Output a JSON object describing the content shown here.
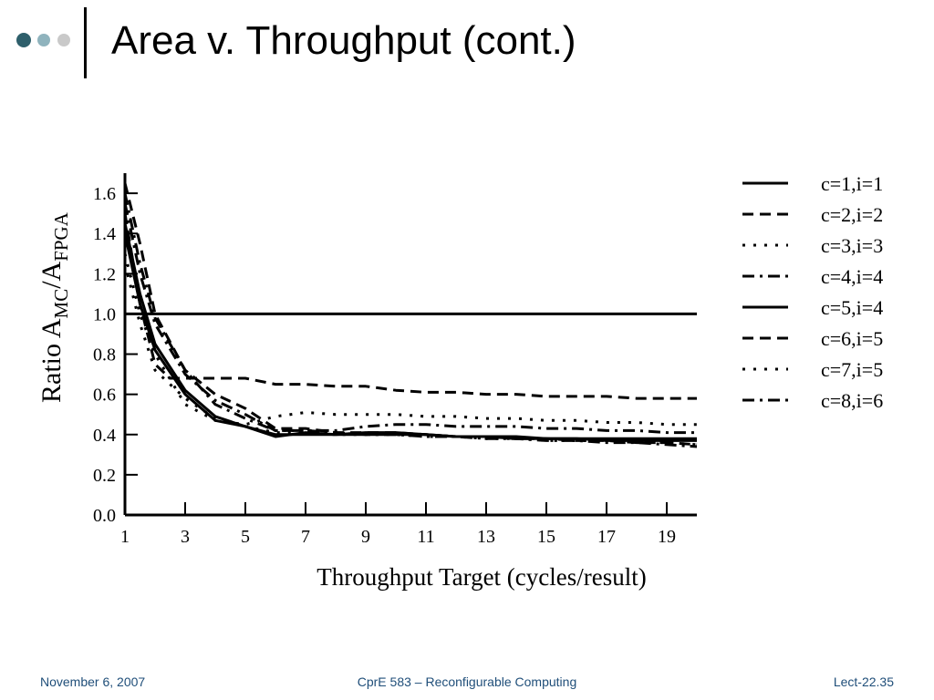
{
  "slide": {
    "title": "Area v. Throughput (cont.)",
    "footer_left": "November 6, 2007",
    "footer_center": "CprE 583 – Reconfigurable Computing",
    "footer_right": "Lect-22.35"
  },
  "theme": {
    "dot_colors": [
      "#2e5f6b",
      "#8fb3bd",
      "#c9c9c9"
    ],
    "footer_color": "#1f4e79"
  },
  "chart_data": {
    "type": "line",
    "title": "",
    "xlabel": "Throughput Target (cycles/result)",
    "ylabel_parts": [
      "Ratio A",
      "MC",
      "/A",
      "FPGA"
    ],
    "xlim": [
      1,
      20
    ],
    "ylim": [
      0,
      1.7
    ],
    "x_ticks": [
      "1",
      "3",
      "5",
      "7",
      "9",
      "11",
      "13",
      "15",
      "17",
      "19"
    ],
    "y_ticks": [
      "0.0",
      "0.2",
      "0.4",
      "0.6",
      "0.8",
      "1.0",
      "1.2",
      "1.4",
      "1.6"
    ],
    "reference_line": 1.0,
    "grid": false,
    "legend_position": "right",
    "series": [
      {
        "name": "c=1,i=1",
        "style": "solid",
        "x": [
          1,
          1.5,
          2,
          3,
          4,
          5,
          6,
          7,
          8,
          9,
          10,
          11,
          12,
          13,
          14,
          15,
          16,
          17,
          18,
          19,
          20
        ],
        "y": [
          1.45,
          1.1,
          0.85,
          0.62,
          0.49,
          0.44,
          0.39,
          0.41,
          0.4,
          0.41,
          0.41,
          0.4,
          0.39,
          0.39,
          0.39,
          0.38,
          0.38,
          0.38,
          0.38,
          0.38,
          0.38
        ]
      },
      {
        "name": "c=2,i=2",
        "style": "dashed",
        "x": [
          1,
          1.5,
          2,
          2.5,
          3,
          4,
          5,
          6,
          7,
          8,
          9,
          10,
          11,
          12,
          13,
          14,
          15,
          16,
          17,
          18,
          19,
          20
        ],
        "y": [
          1.5,
          1.05,
          0.75,
          0.68,
          0.68,
          0.68,
          0.68,
          0.65,
          0.65,
          0.64,
          0.64,
          0.62,
          0.61,
          0.61,
          0.6,
          0.6,
          0.59,
          0.59,
          0.59,
          0.58,
          0.58,
          0.58
        ]
      },
      {
        "name": "c=3,i=3",
        "style": "dotted",
        "x": [
          1,
          1.5,
          2,
          3,
          4,
          5,
          6,
          7,
          8,
          9,
          10,
          11,
          12,
          13,
          14,
          15,
          16,
          17,
          18,
          19,
          20
        ],
        "y": [
          1.3,
          1.0,
          0.8,
          0.55,
          0.47,
          0.45,
          0.49,
          0.51,
          0.5,
          0.5,
          0.5,
          0.49,
          0.49,
          0.48,
          0.48,
          0.47,
          0.47,
          0.46,
          0.46,
          0.45,
          0.45
        ]
      },
      {
        "name": "c=4,i=4",
        "style": "dashdot",
        "x": [
          1,
          1.5,
          2,
          3,
          4,
          5,
          6,
          7,
          8,
          9,
          10,
          11,
          12,
          13,
          14,
          15,
          16,
          17,
          18,
          19,
          20
        ],
        "y": [
          1.55,
          1.2,
          0.95,
          0.7,
          0.57,
          0.5,
          0.42,
          0.42,
          0.42,
          0.44,
          0.45,
          0.45,
          0.44,
          0.44,
          0.44,
          0.43,
          0.43,
          0.42,
          0.42,
          0.41,
          0.41
        ]
      },
      {
        "name": "c=5,i=4",
        "style": "solid",
        "x": [
          1,
          1.5,
          2,
          3,
          4,
          5,
          6,
          7,
          8,
          9,
          10,
          11,
          12,
          13,
          14,
          15,
          16,
          17,
          18,
          19,
          20
        ],
        "y": [
          1.4,
          1.05,
          0.82,
          0.6,
          0.47,
          0.44,
          0.4,
          0.4,
          0.4,
          0.4,
          0.4,
          0.4,
          0.39,
          0.39,
          0.38,
          0.38,
          0.38,
          0.37,
          0.37,
          0.37,
          0.37
        ]
      },
      {
        "name": "c=6,i=5",
        "style": "dashed",
        "x": [
          1,
          1.5,
          2,
          3,
          4,
          5,
          6,
          7,
          8,
          9,
          10,
          11,
          12,
          13,
          14,
          15,
          16,
          17,
          18,
          19,
          20
        ],
        "y": [
          1.65,
          1.35,
          1.0,
          0.72,
          0.6,
          0.53,
          0.43,
          0.43,
          0.41,
          0.41,
          0.41,
          0.4,
          0.39,
          0.39,
          0.38,
          0.38,
          0.37,
          0.37,
          0.36,
          0.36,
          0.35
        ]
      },
      {
        "name": "c=7,i=5",
        "style": "dotted",
        "x": [
          1,
          1.5,
          2,
          3,
          4,
          5,
          6,
          7,
          8,
          9,
          10,
          11,
          12,
          13,
          14,
          15,
          16,
          17,
          18,
          19,
          20
        ],
        "y": [
          1.25,
          0.95,
          0.72,
          0.58,
          0.48,
          0.44,
          0.41,
          0.41,
          0.4,
          0.4,
          0.4,
          0.39,
          0.39,
          0.38,
          0.38,
          0.37,
          0.37,
          0.37,
          0.36,
          0.36,
          0.35
        ]
      },
      {
        "name": "c=8,i=6",
        "style": "dashdot",
        "x": [
          1,
          1.5,
          2,
          3,
          4,
          5,
          6,
          7,
          8,
          9,
          10,
          11,
          12,
          13,
          14,
          15,
          16,
          17,
          18,
          19,
          20
        ],
        "y": [
          1.6,
          1.25,
          0.98,
          0.72,
          0.55,
          0.48,
          0.42,
          0.42,
          0.41,
          0.4,
          0.4,
          0.39,
          0.39,
          0.38,
          0.38,
          0.37,
          0.37,
          0.36,
          0.36,
          0.35,
          0.34
        ]
      }
    ]
  }
}
